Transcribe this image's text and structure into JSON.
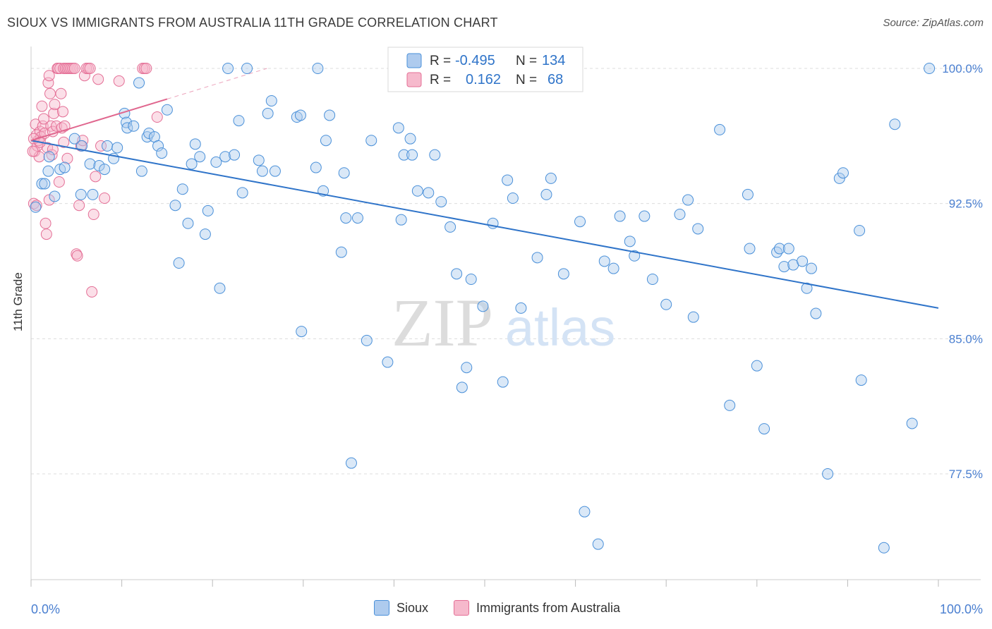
{
  "title": "SIOUX VS IMMIGRANTS FROM AUSTRALIA 11TH GRADE CORRELATION CHART",
  "source": "Source: ZipAtlas.com",
  "watermark": {
    "zip": "ZIP",
    "atlas": "atlas"
  },
  "colors": {
    "blue": "#4a90d9",
    "blue_fill": "#aecbee",
    "pink": "#e46f96",
    "pink_fill": "#f6b9cc",
    "blue_line": "#2f74c9",
    "pink_line": "#e0668e",
    "grid": "#dddddd",
    "tick_label": "#4a7fd0"
  },
  "legend_top": {
    "rows": [
      {
        "r_label": "R =",
        "r_value": "-0.495",
        "n_label": "N =",
        "n_value": "134"
      },
      {
        "r_label": "R =",
        "r_value": "0.162",
        "n_label": "N =",
        "n_value": "68"
      }
    ]
  },
  "legend_bottom": {
    "series1": "Sioux",
    "series2": "Immigrants from Australia"
  },
  "chart_data": {
    "type": "scatter",
    "xlabel": "",
    "ylabel": "11th Grade",
    "xlim": [
      0,
      100
    ],
    "ylim": [
      70.5,
      101.5
    ],
    "x_tick_labels": [
      "0.0%",
      "100.0%"
    ],
    "y_ticks": [
      77.5,
      85.0,
      92.5,
      100.0
    ],
    "y_tick_labels": [
      "77.5%",
      "85.0%",
      "92.5%",
      "100.0%"
    ],
    "grid": "horizontal dashed",
    "legend": "top-center",
    "series": [
      {
        "name": "Sioux",
        "r": -0.495,
        "n": 134,
        "trend": [
          [
            0,
            96.0
          ],
          [
            100,
            86.7
          ]
        ],
        "points": [
          [
            0.5,
            92.3
          ],
          [
            1.2,
            93.6
          ],
          [
            1.5,
            93.6
          ],
          [
            1.9,
            94.3
          ],
          [
            2.0,
            95.1
          ],
          [
            2.6,
            92.9
          ],
          [
            3.2,
            94.4
          ],
          [
            3.7,
            94.5
          ],
          [
            4.8,
            96.1
          ],
          [
            5.5,
            93.0
          ],
          [
            5.6,
            95.7
          ],
          [
            6.5,
            94.7
          ],
          [
            6.8,
            93.0
          ],
          [
            7.5,
            94.6
          ],
          [
            8.1,
            94.4
          ],
          [
            8.4,
            95.7
          ],
          [
            9.1,
            95.0
          ],
          [
            9.5,
            95.6
          ],
          [
            10.3,
            97.5
          ],
          [
            10.5,
            97.0
          ],
          [
            10.6,
            96.7
          ],
          [
            11.3,
            96.8
          ],
          [
            11.9,
            99.2
          ],
          [
            12.2,
            94.3
          ],
          [
            12.8,
            96.2
          ],
          [
            13.0,
            96.4
          ],
          [
            13.6,
            96.2
          ],
          [
            14.0,
            95.7
          ],
          [
            14.4,
            95.3
          ],
          [
            15.0,
            97.7
          ],
          [
            15.9,
            92.4
          ],
          [
            16.3,
            89.2
          ],
          [
            16.7,
            93.3
          ],
          [
            17.3,
            91.4
          ],
          [
            17.7,
            94.7
          ],
          [
            18.1,
            95.8
          ],
          [
            18.6,
            95.1
          ],
          [
            19.2,
            90.8
          ],
          [
            19.5,
            92.1
          ],
          [
            20.4,
            94.8
          ],
          [
            20.8,
            87.8
          ],
          [
            21.4,
            95.1
          ],
          [
            21.7,
            100.0
          ],
          [
            22.4,
            95.2
          ],
          [
            22.9,
            97.1
          ],
          [
            23.3,
            93.1
          ],
          [
            23.8,
            100.0
          ],
          [
            25.1,
            94.9
          ],
          [
            25.5,
            94.3
          ],
          [
            26.1,
            97.5
          ],
          [
            26.5,
            98.2
          ],
          [
            26.9,
            94.3
          ],
          [
            29.3,
            97.3
          ],
          [
            29.7,
            97.4
          ],
          [
            29.8,
            85.4
          ],
          [
            31.4,
            94.5
          ],
          [
            31.6,
            100.0
          ],
          [
            32.2,
            93.2
          ],
          [
            32.5,
            96.0
          ],
          [
            32.9,
            97.4
          ],
          [
            34.2,
            89.8
          ],
          [
            34.5,
            94.2
          ],
          [
            34.7,
            91.7
          ],
          [
            35.3,
            78.1
          ],
          [
            36.0,
            91.7
          ],
          [
            37.0,
            84.9
          ],
          [
            37.5,
            96.0
          ],
          [
            39.3,
            83.7
          ],
          [
            40.5,
            96.7
          ],
          [
            40.8,
            91.6
          ],
          [
            41.1,
            95.2
          ],
          [
            41.8,
            96.1
          ],
          [
            42.0,
            95.2
          ],
          [
            42.6,
            93.2
          ],
          [
            43.8,
            93.1
          ],
          [
            44.5,
            95.2
          ],
          [
            45.2,
            92.6
          ],
          [
            46.2,
            91.2
          ],
          [
            46.9,
            88.6
          ],
          [
            47.5,
            82.3
          ],
          [
            48.0,
            83.4
          ],
          [
            48.5,
            88.3
          ],
          [
            49.8,
            86.8
          ],
          [
            50.9,
            91.4
          ],
          [
            52.0,
            82.6
          ],
          [
            52.5,
            93.8
          ],
          [
            53.1,
            92.8
          ],
          [
            54.0,
            86.7
          ],
          [
            55.8,
            89.5
          ],
          [
            56.8,
            93.0
          ],
          [
            57.3,
            93.9
          ],
          [
            58.7,
            88.6
          ],
          [
            59.5,
            100.0
          ],
          [
            60.5,
            91.5
          ],
          [
            61.0,
            75.4
          ],
          [
            62.5,
            73.6
          ],
          [
            63.2,
            89.3
          ],
          [
            64.2,
            88.9
          ],
          [
            64.9,
            91.8
          ],
          [
            66.0,
            90.4
          ],
          [
            66.5,
            89.6
          ],
          [
            67.6,
            91.8
          ],
          [
            68.5,
            88.3
          ],
          [
            70.0,
            86.9
          ],
          [
            71.5,
            91.9
          ],
          [
            72.4,
            92.7
          ],
          [
            73.0,
            86.2
          ],
          [
            73.5,
            91.1
          ],
          [
            75.9,
            96.6
          ],
          [
            77.0,
            81.3
          ],
          [
            79.0,
            93.0
          ],
          [
            79.2,
            90.0
          ],
          [
            80.0,
            83.5
          ],
          [
            80.8,
            80.0
          ],
          [
            82.2,
            89.8
          ],
          [
            82.5,
            90.0
          ],
          [
            83.0,
            89.0
          ],
          [
            83.5,
            90.0
          ],
          [
            84.0,
            89.1
          ],
          [
            85.0,
            89.3
          ],
          [
            85.5,
            87.8
          ],
          [
            86.0,
            88.9
          ],
          [
            86.5,
            86.4
          ],
          [
            87.8,
            77.5
          ],
          [
            89.1,
            93.9
          ],
          [
            89.5,
            94.2
          ],
          [
            91.3,
            91.0
          ],
          [
            91.5,
            82.7
          ],
          [
            94.0,
            73.4
          ],
          [
            95.2,
            96.9
          ],
          [
            97.1,
            80.3
          ],
          [
            99.0,
            100.0
          ]
        ]
      },
      {
        "name": "Immigrants from Australia",
        "r": 0.162,
        "n": 68,
        "trend": [
          [
            0,
            96.0
          ],
          [
            15,
            98.3
          ]
        ],
        "trend_dashed": [
          [
            15,
            98.3
          ],
          [
            26,
            100.0
          ]
        ],
        "points": [
          [
            0.3,
            92.5
          ],
          [
            0.4,
            95.4
          ],
          [
            0.5,
            96.9
          ],
          [
            0.6,
            96.3
          ],
          [
            0.7,
            95.7
          ],
          [
            0.8,
            96.0
          ],
          [
            0.9,
            95.1
          ],
          [
            1.0,
            96.5
          ],
          [
            1.1,
            96.2
          ],
          [
            1.2,
            97.9
          ],
          [
            1.3,
            96.8
          ],
          [
            1.4,
            97.2
          ],
          [
            1.5,
            96.4
          ],
          [
            1.6,
            91.4
          ],
          [
            1.7,
            90.8
          ],
          [
            1.8,
            95.6
          ],
          [
            1.9,
            99.2
          ],
          [
            2.0,
            99.6
          ],
          [
            2.1,
            98.6
          ],
          [
            2.2,
            96.8
          ],
          [
            2.3,
            95.2
          ],
          [
            2.4,
            96.5
          ],
          [
            2.5,
            97.5
          ],
          [
            2.6,
            98.0
          ],
          [
            2.8,
            96.8
          ],
          [
            2.9,
            100.0
          ],
          [
            3.0,
            100.0
          ],
          [
            3.1,
            93.7
          ],
          [
            3.2,
            100.0
          ],
          [
            3.3,
            98.6
          ],
          [
            3.4,
            96.7
          ],
          [
            3.5,
            97.6
          ],
          [
            3.6,
            100.0
          ],
          [
            3.7,
            96.8
          ],
          [
            3.8,
            100.0
          ],
          [
            4.0,
            100.0
          ],
          [
            4.2,
            100.0
          ],
          [
            4.4,
            100.0
          ],
          [
            4.6,
            100.0
          ],
          [
            4.8,
            100.0
          ],
          [
            5.0,
            89.7
          ],
          [
            5.1,
            89.6
          ],
          [
            5.3,
            92.4
          ],
          [
            5.5,
            95.7
          ],
          [
            5.7,
            96.0
          ],
          [
            5.9,
            99.6
          ],
          [
            6.1,
            100.0
          ],
          [
            6.3,
            100.0
          ],
          [
            6.5,
            100.0
          ],
          [
            6.7,
            87.6
          ],
          [
            6.9,
            91.9
          ],
          [
            7.1,
            94.0
          ],
          [
            7.4,
            99.4
          ],
          [
            7.7,
            95.7
          ],
          [
            8.1,
            92.8
          ],
          [
            9.7,
            99.3
          ],
          [
            12.3,
            100.0
          ],
          [
            12.5,
            100.0
          ],
          [
            12.7,
            100.0
          ],
          [
            13.9,
            97.3
          ],
          [
            0.2,
            95.4
          ],
          [
            0.3,
            96.1
          ],
          [
            0.6,
            92.4
          ],
          [
            1.0,
            95.9
          ],
          [
            2.0,
            92.7
          ],
          [
            2.4,
            95.5
          ],
          [
            3.6,
            95.9
          ],
          [
            4.0,
            95.0
          ]
        ]
      }
    ]
  }
}
